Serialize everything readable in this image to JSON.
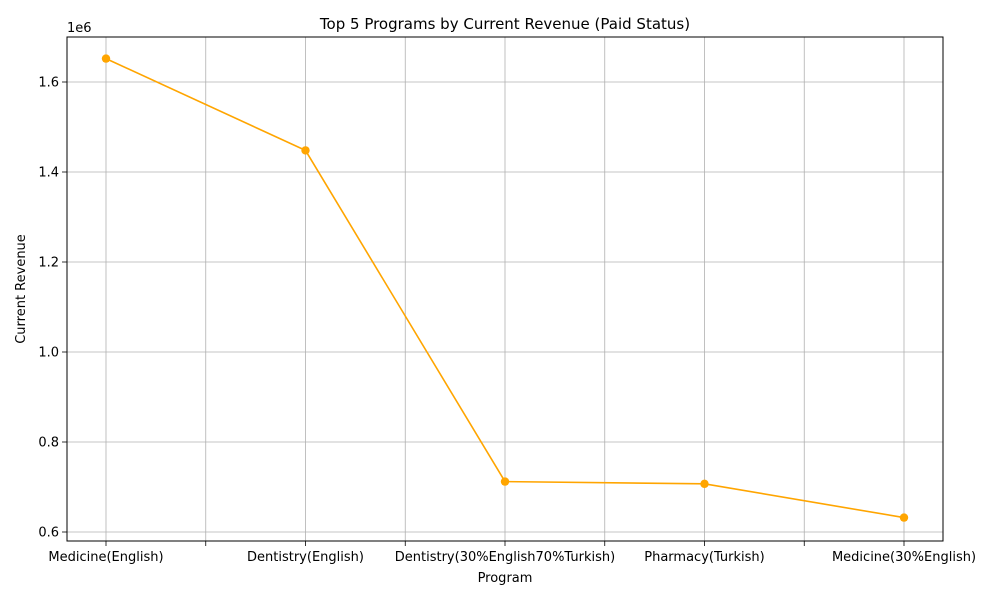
{
  "chart_data": {
    "type": "line",
    "title": "Top 5 Programs by Current Revenue (Paid Status)",
    "xlabel": "Program",
    "ylabel": "Current Revenue",
    "y_multiplier_label": "1e6",
    "categories": [
      "Medicine(English)",
      "Dentistry(English)",
      "Dentistry(30%English70%Turkish)",
      "Pharmacy(Turkish)",
      "Medicine(30%English)"
    ],
    "series": [
      {
        "values": [
          1652000,
          1448000,
          712000,
          707000,
          632000
        ],
        "color": "#ffa500"
      }
    ],
    "ylim": [
      580000,
      1700000
    ],
    "yticks": [
      0.6,
      0.8,
      1.0,
      1.2,
      1.4,
      1.6
    ],
    "ytick_labels": [
      "0.6",
      "0.8",
      "1.0",
      "1.2",
      "1.4",
      "1.6"
    ],
    "grid": true,
    "legend": "none"
  }
}
